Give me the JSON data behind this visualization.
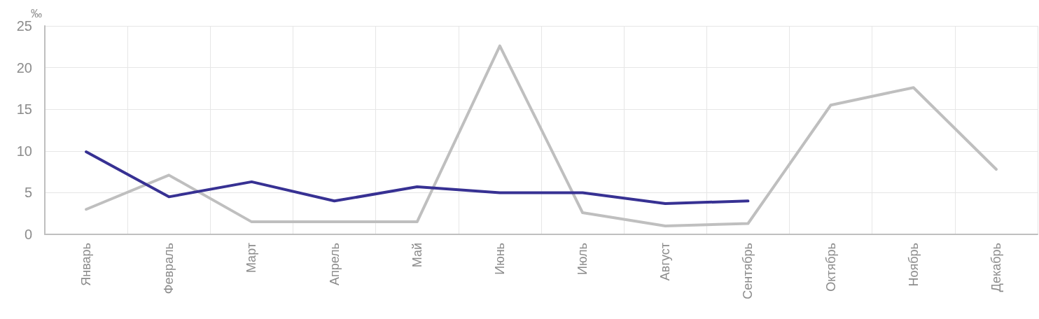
{
  "chart_data": {
    "type": "line",
    "ylabel": "‰",
    "categories": [
      "Январь",
      "Февраль",
      "Март",
      "Апрель",
      "Май",
      "Июнь",
      "Июль",
      "Август",
      "Сентябрь",
      "Октябрь",
      "Ноябрь",
      "Декабрь"
    ],
    "series": [
      {
        "color": "#bfbfbf",
        "values": [
          3.0,
          7.1,
          1.5,
          1.5,
          1.5,
          22.6,
          2.6,
          1.0,
          1.3,
          15.5,
          17.6,
          7.8
        ]
      },
      {
        "color": "#373193",
        "values": [
          9.9,
          4.5,
          6.3,
          4.0,
          5.7,
          5.0,
          5.0,
          3.7,
          4.0,
          null,
          null,
          null
        ]
      }
    ],
    "ylim": [
      0,
      25
    ],
    "yticks": [
      0,
      5,
      10,
      15,
      20,
      25
    ],
    "grid": true,
    "marker": "none",
    "line_style": "solid"
  }
}
